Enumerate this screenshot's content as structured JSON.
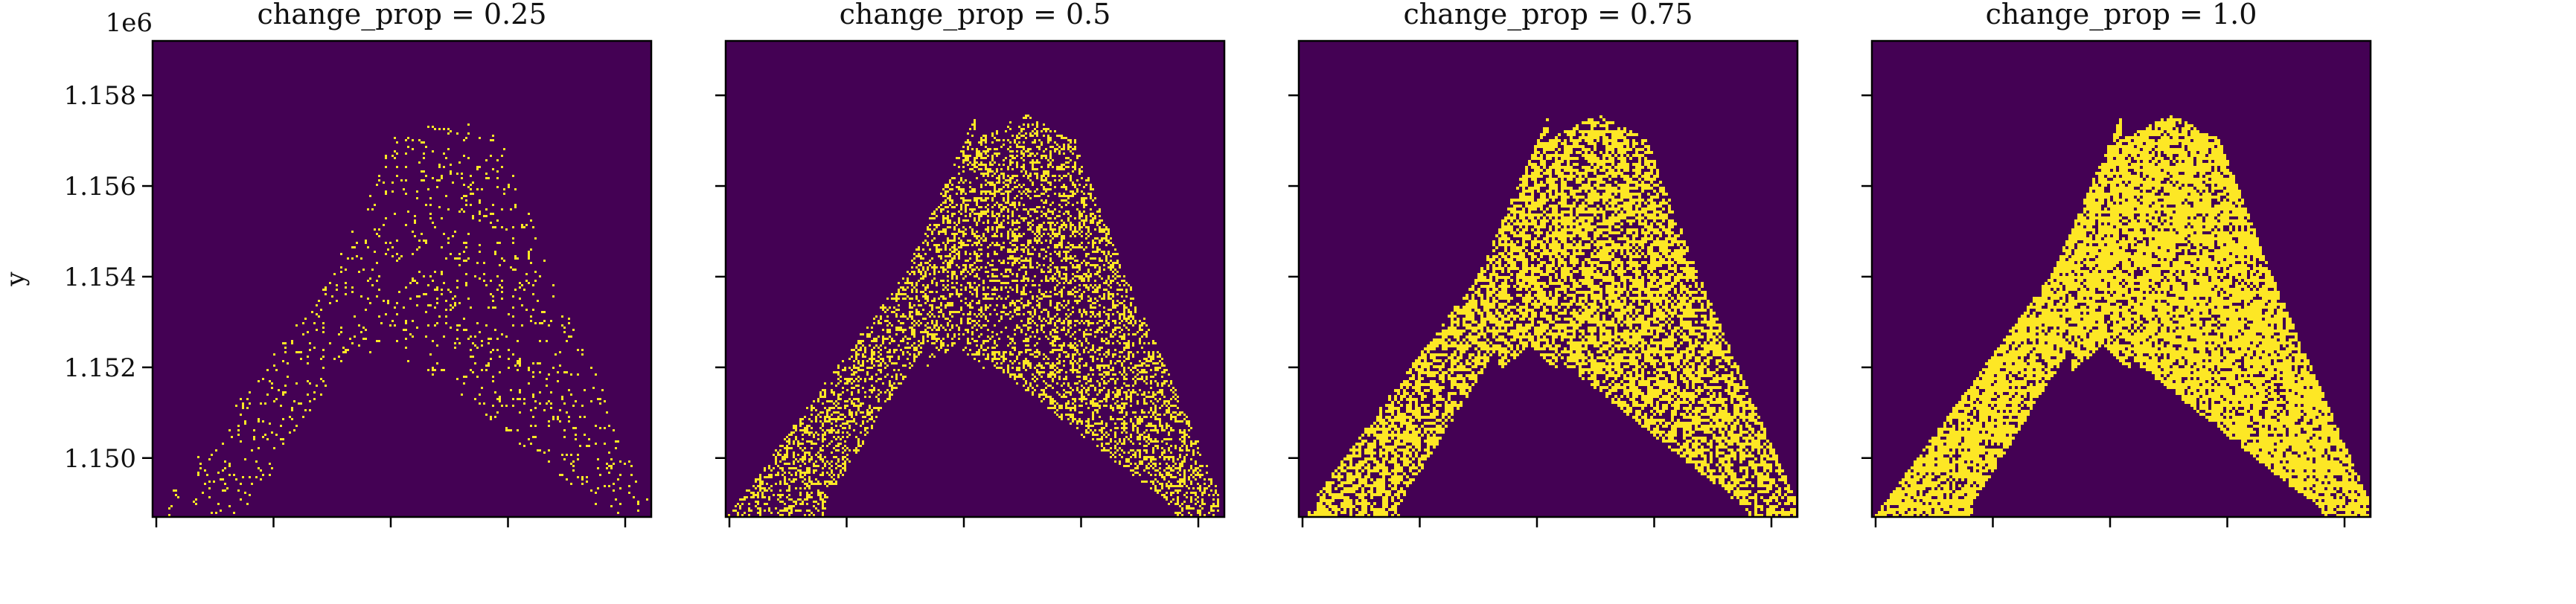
{
  "chart_data": {
    "type": "heatmap",
    "colormap": "viridis",
    "colors": {
      "background": "#440154",
      "changed": "#FDE725",
      "axis": "#000000"
    },
    "ylabel": "y",
    "y_offset_label": "1e6",
    "ylim": [
      1.1487,
      1.1592
    ],
    "yticks": [
      1.15,
      1.152,
      1.154,
      1.156,
      1.158
    ],
    "ytick_labels": [
      "1.150",
      "1.152",
      "1.154",
      "1.156",
      "1.158"
    ],
    "x_tick_count": 5,
    "panels": [
      {
        "title": "change_prop = 0.25",
        "change_prop": 0.25
      },
      {
        "title": "change_prop = 0.5",
        "change_prop": 0.5
      },
      {
        "title": "change_prop = 0.75",
        "change_prop": 0.75
      },
      {
        "title": "change_prop = 1.0",
        "change_prop": 1.0
      }
    ]
  }
}
